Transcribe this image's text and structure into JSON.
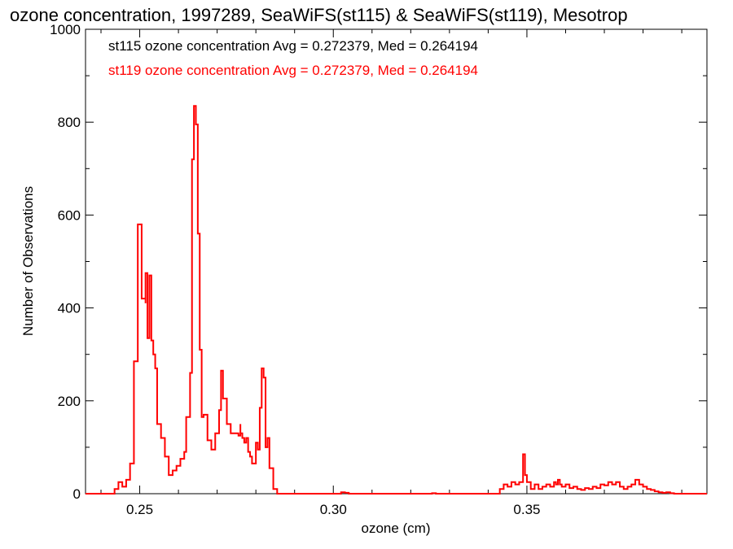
{
  "chart_data": {
    "type": "line",
    "step": true,
    "title": "ozone concentration, 1997289, SeaWiFS(st115) & SeaWiFS(st119), Mesotrop",
    "xlabel": "ozone (cm)",
    "ylabel": "Number of Observations",
    "xlim": [
      0.236,
      0.3965
    ],
    "ylim": [
      0,
      1000
    ],
    "xticks": [
      0.25,
      0.3,
      0.35
    ],
    "xtick_labels": [
      "0.25",
      "0.30",
      "0.35"
    ],
    "yticks": [
      0,
      200,
      400,
      600,
      800,
      1000
    ],
    "ytick_labels": [
      "0",
      "200",
      "400",
      "600",
      "800",
      "1000"
    ],
    "annotations": [
      {
        "text": "st115 ozone concentration Avg = 0.272379, Med = 0.264194",
        "color": "#000000"
      },
      {
        "text": "st119 ozone concentration Avg = 0.272379, Med = 0.264194",
        "color": "#ff0000"
      }
    ],
    "series": [
      {
        "color": "#ff0000",
        "points": [
          [
            0.236,
            0
          ],
          [
            0.2435,
            0
          ],
          [
            0.2435,
            10
          ],
          [
            0.2445,
            25
          ],
          [
            0.2455,
            15
          ],
          [
            0.2465,
            30
          ],
          [
            0.2475,
            65
          ],
          [
            0.2485,
            70
          ],
          [
            0.2485,
            285
          ],
          [
            0.2495,
            330
          ],
          [
            0.2495,
            580
          ],
          [
            0.2505,
            530
          ],
          [
            0.2505,
            420
          ],
          [
            0.2515,
            410
          ],
          [
            0.2515,
            475
          ],
          [
            0.252,
            475
          ],
          [
            0.252,
            335
          ],
          [
            0.2525,
            335
          ],
          [
            0.2525,
            470
          ],
          [
            0.253,
            470
          ],
          [
            0.253,
            330
          ],
          [
            0.2535,
            300
          ],
          [
            0.254,
            270
          ],
          [
            0.2545,
            150
          ],
          [
            0.2555,
            120
          ],
          [
            0.2565,
            80
          ],
          [
            0.2575,
            40
          ],
          [
            0.2585,
            50
          ],
          [
            0.2595,
            60
          ],
          [
            0.2605,
            75
          ],
          [
            0.2615,
            90
          ],
          [
            0.262,
            165
          ],
          [
            0.263,
            260
          ],
          [
            0.2635,
            390
          ],
          [
            0.2635,
            720
          ],
          [
            0.264,
            800
          ],
          [
            0.264,
            835
          ],
          [
            0.2645,
            835
          ],
          [
            0.2645,
            795
          ],
          [
            0.265,
            795
          ],
          [
            0.265,
            560
          ],
          [
            0.2655,
            310
          ],
          [
            0.266,
            165
          ],
          [
            0.2665,
            170
          ],
          [
            0.2675,
            115
          ],
          [
            0.2685,
            95
          ],
          [
            0.2695,
            130
          ],
          [
            0.2705,
            180
          ],
          [
            0.271,
            205
          ],
          [
            0.271,
            265
          ],
          [
            0.2715,
            205
          ],
          [
            0.2725,
            150
          ],
          [
            0.2735,
            130
          ],
          [
            0.2745,
            130
          ],
          [
            0.2755,
            125
          ],
          [
            0.276,
            150
          ],
          [
            0.276,
            130
          ],
          [
            0.2765,
            120
          ],
          [
            0.277,
            110
          ],
          [
            0.2775,
            120
          ],
          [
            0.278,
            90
          ],
          [
            0.2785,
            80
          ],
          [
            0.279,
            65
          ],
          [
            0.28,
            110
          ],
          [
            0.2805,
            95
          ],
          [
            0.281,
            185
          ],
          [
            0.2815,
            270
          ],
          [
            0.282,
            250
          ],
          [
            0.2825,
            100
          ],
          [
            0.283,
            120
          ],
          [
            0.2835,
            55
          ],
          [
            0.2845,
            10
          ],
          [
            0.2855,
            0
          ],
          [
            0.301,
            0
          ],
          [
            0.302,
            3
          ],
          [
            0.303,
            2
          ],
          [
            0.304,
            0
          ],
          [
            0.325,
            0
          ],
          [
            0.3255,
            1
          ],
          [
            0.3265,
            0
          ],
          [
            0.342,
            0
          ],
          [
            0.343,
            10
          ],
          [
            0.344,
            20
          ],
          [
            0.345,
            15
          ],
          [
            0.346,
            25
          ],
          [
            0.347,
            20
          ],
          [
            0.348,
            25
          ],
          [
            0.349,
            60
          ],
          [
            0.349,
            85
          ],
          [
            0.3495,
            40
          ],
          [
            0.35,
            25
          ],
          [
            0.351,
            10
          ],
          [
            0.352,
            20
          ],
          [
            0.353,
            10
          ],
          [
            0.354,
            15
          ],
          [
            0.355,
            20
          ],
          [
            0.356,
            15
          ],
          [
            0.357,
            25
          ],
          [
            0.3575,
            20
          ],
          [
            0.358,
            30
          ],
          [
            0.3585,
            20
          ],
          [
            0.359,
            15
          ],
          [
            0.36,
            20
          ],
          [
            0.361,
            12
          ],
          [
            0.362,
            15
          ],
          [
            0.363,
            10
          ],
          [
            0.364,
            8
          ],
          [
            0.365,
            12
          ],
          [
            0.366,
            10
          ],
          [
            0.367,
            15
          ],
          [
            0.368,
            12
          ],
          [
            0.369,
            20
          ],
          [
            0.37,
            18
          ],
          [
            0.371,
            25
          ],
          [
            0.372,
            20
          ],
          [
            0.373,
            25
          ],
          [
            0.374,
            15
          ],
          [
            0.375,
            10
          ],
          [
            0.376,
            15
          ],
          [
            0.377,
            20
          ],
          [
            0.378,
            30
          ],
          [
            0.379,
            20
          ],
          [
            0.38,
            15
          ],
          [
            0.381,
            10
          ],
          [
            0.382,
            8
          ],
          [
            0.383,
            5
          ],
          [
            0.384,
            3
          ],
          [
            0.385,
            2
          ],
          [
            0.386,
            3
          ],
          [
            0.387,
            1
          ],
          [
            0.388,
            0
          ],
          [
            0.3965,
            0
          ]
        ]
      }
    ]
  }
}
